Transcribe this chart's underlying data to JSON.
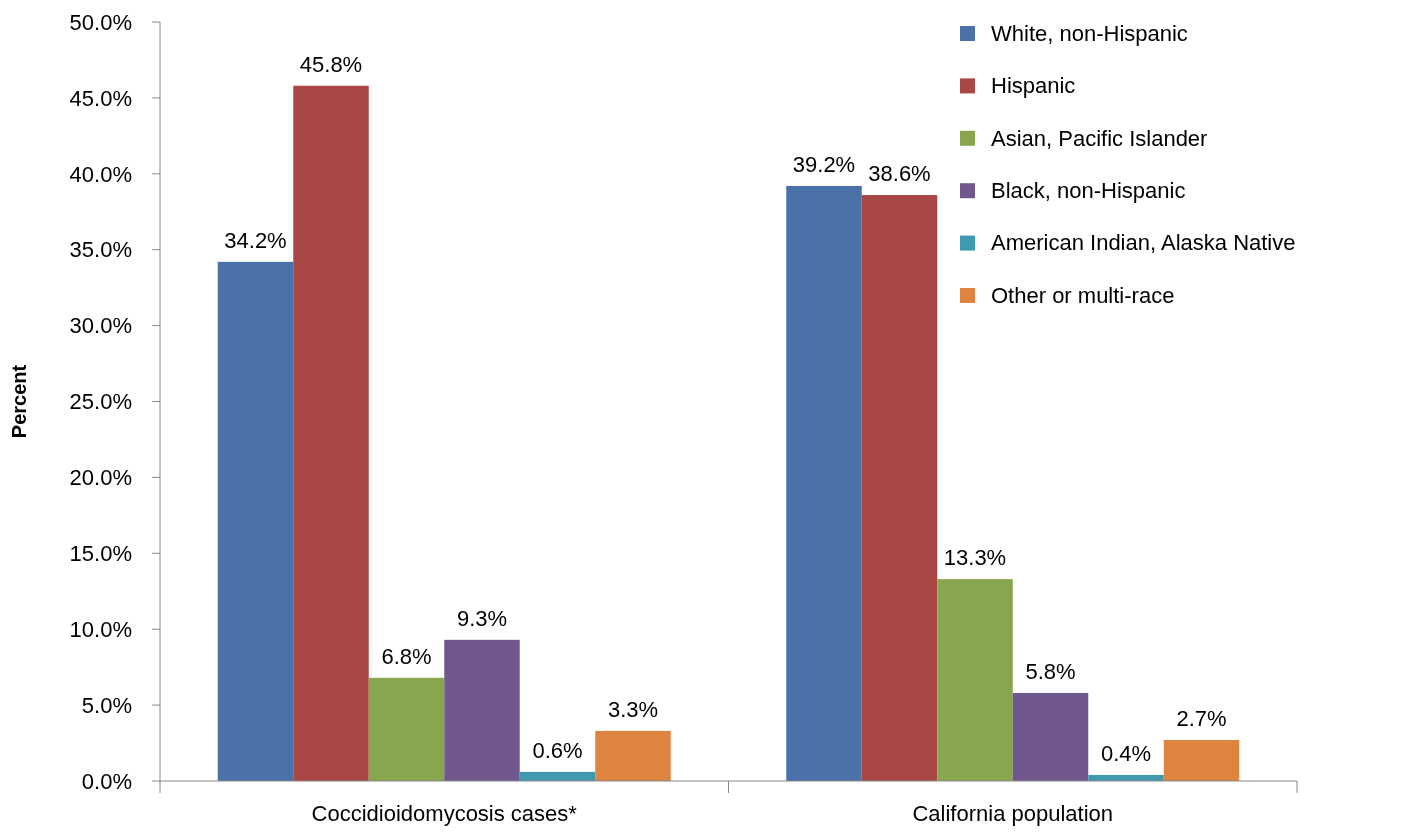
{
  "chart_data": {
    "type": "bar",
    "ylabel": "Percent",
    "categories": [
      "Coccidioidomycosis cases*",
      "California population"
    ],
    "series": [
      {
        "name": "White, non-Hispanic",
        "color": "#4a71a8",
        "values": [
          34.2,
          39.2
        ],
        "value_labels": [
          "34.2%",
          "39.2%"
        ]
      },
      {
        "name": "Hispanic",
        "color": "#a84744",
        "values": [
          45.8,
          38.6
        ],
        "value_labels": [
          "45.8%",
          "38.6%"
        ]
      },
      {
        "name": "Asian, Pacific Islander",
        "color": "#88a64e",
        "values": [
          6.8,
          13.3
        ],
        "value_labels": [
          "6.8%",
          "13.3%"
        ]
      },
      {
        "name": "Black, non-Hispanic",
        "color": "#70588f",
        "values": [
          9.3,
          5.8
        ],
        "value_labels": [
          "9.3%",
          "5.8%"
        ]
      },
      {
        "name": "American Indian, Alaska Native",
        "color": "#3f9aaf",
        "values": [
          0.6,
          0.4
        ],
        "value_labels": [
          "0.6%",
          "0.4%"
        ]
      },
      {
        "name": "Other or multi-race",
        "color": "#dd8540",
        "values": [
          3.3,
          2.7
        ],
        "value_labels": [
          "3.3%",
          "2.7%"
        ]
      }
    ],
    "ylim": [
      0,
      50
    ],
    "yticks": [
      {
        "value": 0,
        "label": "0.0%"
      },
      {
        "value": 5,
        "label": "5.0%"
      },
      {
        "value": 10,
        "label": "10.0%"
      },
      {
        "value": 15,
        "label": "15.0%"
      },
      {
        "value": 20,
        "label": "20.0%"
      },
      {
        "value": 25,
        "label": "25.0%"
      },
      {
        "value": 30,
        "label": "30.0%"
      },
      {
        "value": 35,
        "label": "35.0%"
      },
      {
        "value": 40,
        "label": "40.0%"
      },
      {
        "value": 45,
        "label": "45.0%"
      },
      {
        "value": 50,
        "label": "50.0%"
      }
    ],
    "grid": false,
    "legend": "top right"
  }
}
